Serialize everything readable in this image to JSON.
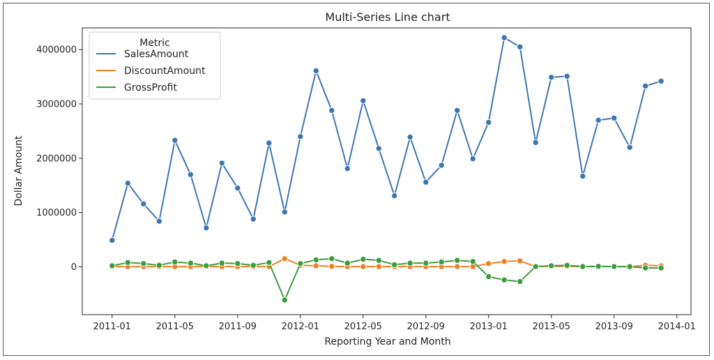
{
  "chart_data": {
    "type": "line",
    "title": "Multi-Series Line chart",
    "xlabel": "Reporting Year and Month",
    "ylabel": "Dollar Amount",
    "ylim": [
      -880000,
      4400000
    ],
    "y_ticks": [
      0,
      1000000,
      2000000,
      3000000,
      4000000
    ],
    "y_tick_labels": [
      "0",
      "1000000",
      "2000000",
      "3000000",
      "4000000"
    ],
    "x_ticks": [
      "2011-01",
      "2011-05",
      "2011-09",
      "2012-01",
      "2012-05",
      "2012-09",
      "2013-01",
      "2013-05",
      "2013-09",
      "2014-01"
    ],
    "x": [
      "2011-01",
      "2011-02",
      "2011-03",
      "2011-04",
      "2011-05",
      "2011-06",
      "2011-07",
      "2011-08",
      "2011-09",
      "2011-10",
      "2011-11",
      "2011-12",
      "2012-01",
      "2012-02",
      "2012-03",
      "2012-04",
      "2012-05",
      "2012-06",
      "2012-07",
      "2012-08",
      "2012-09",
      "2012-10",
      "2012-11",
      "2012-12",
      "2013-01",
      "2013-02",
      "2013-03",
      "2013-04",
      "2013-05",
      "2013-06",
      "2013-07",
      "2013-08",
      "2013-09",
      "2013-10",
      "2013-11",
      "2013-12"
    ],
    "legend": {
      "title": "Metric",
      "placement": "top-left"
    },
    "grid": false,
    "series": [
      {
        "name": "SalesAmount",
        "color": "#3c76b0",
        "values": [
          490000,
          1540000,
          1160000,
          840000,
          2330000,
          1700000,
          720000,
          1910000,
          1450000,
          880000,
          2280000,
          1010000,
          2400000,
          3610000,
          2880000,
          1810000,
          3060000,
          2180000,
          1310000,
          2390000,
          1560000,
          1870000,
          2880000,
          1990000,
          2660000,
          4220000,
          4050000,
          2290000,
          3490000,
          3510000,
          1670000,
          2700000,
          2740000,
          2200000,
          3330000,
          3420000
        ]
      },
      {
        "name": "DiscountAmount",
        "color": "#f07f22",
        "values": [
          5000,
          5000,
          5000,
          5000,
          5000,
          5000,
          5000,
          5000,
          5000,
          5000,
          5000,
          150000,
          30000,
          20000,
          10000,
          5000,
          5000,
          5000,
          5000,
          5000,
          5000,
          5000,
          5000,
          5000,
          60000,
          100000,
          110000,
          5000,
          10000,
          10000,
          5000,
          10000,
          5000,
          5000,
          30000,
          20000
        ]
      },
      {
        "name": "GrossProfit",
        "color": "#3b9c3b",
        "values": [
          20000,
          80000,
          60000,
          30000,
          90000,
          70000,
          20000,
          70000,
          60000,
          30000,
          80000,
          -610000,
          60000,
          130000,
          150000,
          70000,
          140000,
          120000,
          40000,
          70000,
          70000,
          90000,
          120000,
          100000,
          -180000,
          -240000,
          -270000,
          5000,
          20000,
          30000,
          5000,
          10000,
          5000,
          5000,
          -20000,
          -20000
        ]
      }
    ]
  }
}
